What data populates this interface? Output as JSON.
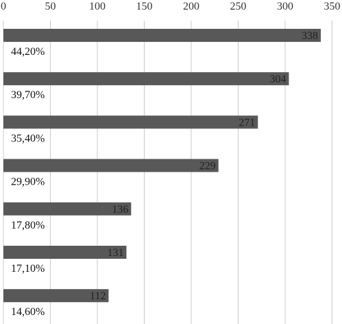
{
  "chart_data": {
    "type": "bar",
    "orientation": "horizontal",
    "title": "",
    "xlabel": "",
    "ylabel": "",
    "xlim": [
      0,
      350
    ],
    "x_ticks": [
      "0",
      "50",
      "100",
      "150",
      "200",
      "250",
      "300",
      "350"
    ],
    "x_tick_values": [
      0,
      50,
      100,
      150,
      200,
      250,
      300,
      350
    ],
    "axis_position": "top",
    "grid": true,
    "legend": "none",
    "series": [
      {
        "values": [
          338,
          304,
          271,
          229,
          136,
          131,
          112
        ],
        "value_labels": [
          "338",
          "304",
          "271",
          "229",
          "136",
          "131",
          "112"
        ],
        "percent_labels": [
          "44,20%",
          "39,70%",
          "35,40%",
          "29,90%",
          "17,80%",
          "17,10%",
          "14,60%"
        ]
      }
    ],
    "colors": {
      "bar": "#585858",
      "grid": "#c8c8c8",
      "text": "#222222"
    }
  }
}
